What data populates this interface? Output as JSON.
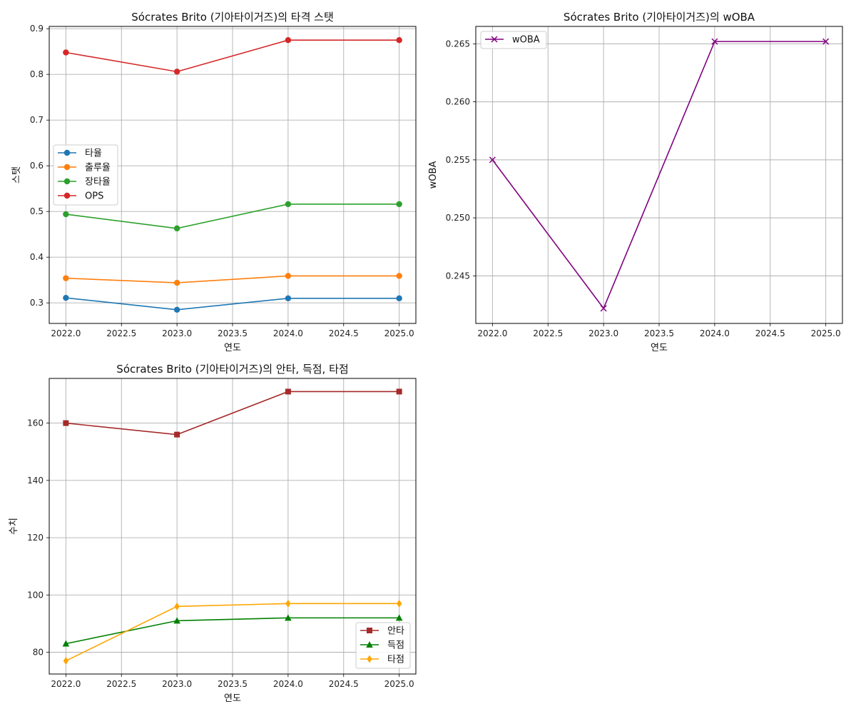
{
  "chart_data": [
    {
      "type": "line",
      "title": "Sócrates Brito (기아타이거즈)의 타격 스탯",
      "xlabel": "연도",
      "ylabel": "스탯",
      "x": [
        2022,
        2023,
        2024,
        2025
      ],
      "xlim": [
        2021.85,
        2025.15
      ],
      "ylim": [
        0.255,
        0.905
      ],
      "xticks": [
        2022.0,
        2022.5,
        2023.0,
        2023.5,
        2024.0,
        2024.5,
        2025.0
      ],
      "xtick_labels": [
        "2022.0",
        "2022.5",
        "2023.0",
        "2023.5",
        "2024.0",
        "2024.5",
        "2025.0"
      ],
      "yticks": [
        0.3,
        0.4,
        0.5,
        0.6,
        0.7,
        0.8,
        0.9
      ],
      "ytick_labels": [
        "0.3",
        "0.4",
        "0.5",
        "0.6",
        "0.7",
        "0.8",
        "0.9"
      ],
      "grid": true,
      "legend_position": "center-left",
      "series": [
        {
          "name": "타율",
          "values": [
            0.311,
            0.285,
            0.31,
            0.31
          ],
          "color": "#1f77b4",
          "marker": "circle"
        },
        {
          "name": "출루율",
          "values": [
            0.354,
            0.344,
            0.359,
            0.359
          ],
          "color": "#ff7f0e",
          "marker": "circle"
        },
        {
          "name": "장타율",
          "values": [
            0.494,
            0.463,
            0.516,
            0.516
          ],
          "color": "#2ca02c",
          "marker": "circle"
        },
        {
          "name": "OPS",
          "values": [
            0.848,
            0.806,
            0.875,
            0.875
          ],
          "color": "#d62728",
          "marker": "circle"
        }
      ]
    },
    {
      "type": "line",
      "title": "Sócrates Brito (기아타이거즈)의 wOBA",
      "xlabel": "연도",
      "ylabel": "wOBA",
      "x": [
        2022,
        2023,
        2024,
        2025
      ],
      "xlim": [
        2021.85,
        2025.15
      ],
      "ylim": [
        0.2409,
        0.2665
      ],
      "xticks": [
        2022.0,
        2022.5,
        2023.0,
        2023.5,
        2024.0,
        2024.5,
        2025.0
      ],
      "xtick_labels": [
        "2022.0",
        "2022.5",
        "2023.0",
        "2023.5",
        "2024.0",
        "2024.5",
        "2025.0"
      ],
      "yticks": [
        0.245,
        0.25,
        0.255,
        0.26,
        0.265
      ],
      "ytick_labels": [
        "0.245",
        "0.250",
        "0.255",
        "0.260",
        "0.265"
      ],
      "grid": true,
      "legend_position": "top-left",
      "series": [
        {
          "name": "wOBA",
          "values": [
            0.255,
            0.2422,
            0.2652,
            0.2652
          ],
          "color": "#800080",
          "marker": "x"
        }
      ]
    },
    {
      "type": "line",
      "title": "Sócrates Brito (기아타이거즈)의 안타, 득점, 타점",
      "xlabel": "연도",
      "ylabel": "수치",
      "x": [
        2022,
        2023,
        2024,
        2025
      ],
      "xlim": [
        2021.85,
        2025.15
      ],
      "ylim": [
        72.4,
        175.6
      ],
      "xticks": [
        2022.0,
        2022.5,
        2023.0,
        2023.5,
        2024.0,
        2024.5,
        2025.0
      ],
      "xtick_labels": [
        "2022.0",
        "2022.5",
        "2023.0",
        "2023.5",
        "2024.0",
        "2024.5",
        "2025.0"
      ],
      "yticks": [
        80,
        100,
        120,
        140,
        160
      ],
      "ytick_labels": [
        "80",
        "100",
        "120",
        "140",
        "160"
      ],
      "grid": true,
      "legend_position": "bottom-right",
      "series": [
        {
          "name": "안타",
          "values": [
            160,
            156,
            171,
            171
          ],
          "color": "#a52a2a",
          "marker": "square"
        },
        {
          "name": "득점",
          "values": [
            83,
            91,
            92,
            92
          ],
          "color": "#008000",
          "marker": "triangle"
        },
        {
          "name": "타점",
          "values": [
            77,
            96,
            97,
            97
          ],
          "color": "#ffa500",
          "marker": "diamond"
        }
      ]
    }
  ]
}
